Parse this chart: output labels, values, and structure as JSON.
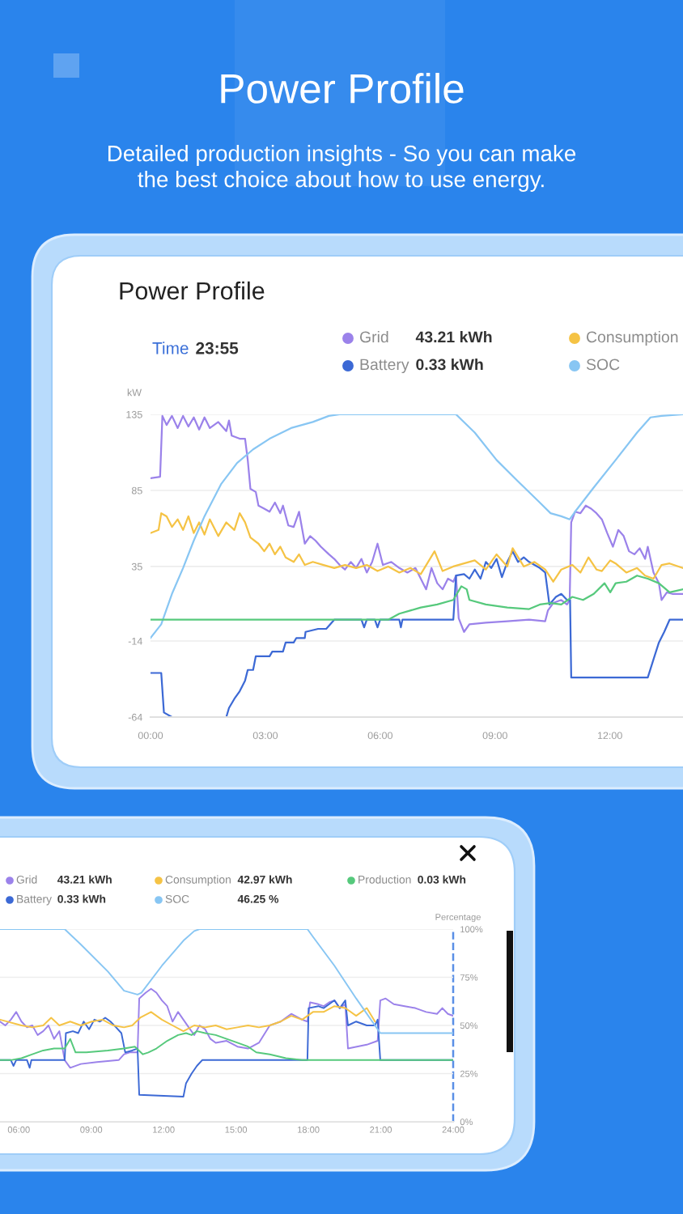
{
  "chart_data": [
    {
      "type": "other",
      "title": "Power Profile",
      "subtitle": "Detailed production insights - So you can make\nthe best choice about how to use energy."
    },
    {
      "type": "line",
      "title": "Power Profile",
      "subtitle": "Time 23:55",
      "ylabel": "kW",
      "xlim": [
        0,
        13.91
      ],
      "xticks": [
        {
          "value": 0,
          "label": "00:00"
        },
        {
          "value": 3,
          "label": "03:00"
        },
        {
          "value": 6,
          "label": "06:00"
        },
        {
          "value": 9,
          "label": "09:00"
        },
        {
          "value": 12,
          "label": "12:00"
        }
      ],
      "ylim": [
        -64,
        135
      ],
      "yticks": [
        135,
        85,
        35,
        -14,
        -64
      ],
      "grid": "y",
      "legend": "top",
      "line_style": "solid",
      "annotations": [
        "43.21 kWh",
        "0.33 kWh"
      ],
      "series": [
        {
          "name": "Grid",
          "color": "#9b82ea",
          "x": [
            0,
            0.25,
            0.31,
            0.42,
            0.56,
            0.71,
            0.85,
            0.99,
            1.13,
            1.27,
            1.41,
            1.55,
            1.77,
            1.98,
            2.05,
            2.12,
            2.33,
            2.47,
            2.54,
            2.61,
            2.75,
            2.82,
            2.97,
            3.11,
            3.25,
            3.39,
            3.46,
            3.6,
            3.74,
            3.88,
            4.03,
            4.17,
            4.31,
            4.45,
            4.66,
            4.8,
            4.94,
            5.08,
            5.23,
            5.37,
            5.51,
            5.65,
            5.79,
            5.93,
            6.07,
            6.29,
            6.5,
            6.71,
            6.92,
            7.06,
            7.2,
            7.34,
            7.49,
            7.63,
            7.77,
            7.91,
            7.98,
            8.05,
            8.19,
            8.33,
            8.76,
            9.32,
            9.89,
            10.31,
            10.38,
            10.52,
            10.73,
            10.88,
            10.95,
            10.99,
            11.09,
            11.23,
            11.37,
            11.51,
            11.65,
            11.79,
            11.93,
            12.08,
            12.22,
            12.36,
            12.5,
            12.64,
            12.78,
            12.92,
            12.99,
            13.14,
            13.28,
            13.35,
            13.49,
            13.63,
            13.91
          ],
          "values": [
            93,
            94,
            134,
            128,
            134,
            126,
            134,
            127,
            133,
            125,
            133,
            126,
            130,
            124,
            131,
            121,
            119,
            119,
            105,
            86,
            84,
            75,
            73,
            71,
            77,
            70,
            75,
            62,
            61,
            71,
            50,
            55,
            52,
            48,
            43,
            40,
            36,
            33,
            38,
            34,
            40,
            31,
            38,
            50,
            36,
            38,
            34,
            31,
            34,
            27,
            20,
            34,
            24,
            20,
            27,
            25,
            29,
            1,
            -8,
            -3,
            -2,
            -1,
            0,
            -1,
            6,
            11,
            13,
            10,
            13,
            64,
            71,
            70,
            75,
            73,
            70,
            66,
            57,
            48,
            59,
            55,
            45,
            43,
            47,
            40,
            48,
            31,
            24,
            13,
            18,
            17,
            17
          ]
        },
        {
          "name": "Battery",
          "color": "#3c69d5",
          "x": [
            0,
            0.28,
            0.35,
            0.56,
            1.98,
            2.05,
            2.19,
            2.33,
            2.47,
            2.54,
            2.68,
            2.75,
            3.11,
            3.18,
            3.46,
            3.53,
            3.74,
            3.81,
            4.03,
            4.05,
            4.38,
            4.59,
            4.66,
            4.8,
            5.51,
            5.58,
            5.65,
            5.86,
            5.93,
            6.0,
            6.5,
            6.54,
            6.58,
            7.91,
            7.98,
            8.19,
            8.33,
            8.47,
            8.62,
            8.76,
            8.9,
            9.04,
            9.18,
            9.32,
            9.46,
            9.6,
            9.75,
            9.89,
            10.03,
            10.17,
            10.31,
            10.42,
            10.59,
            10.73,
            10.88,
            10.96,
            10.99,
            12.99,
            13.14,
            13.28,
            13.42,
            13.56,
            13.91
          ],
          "values": [
            -35,
            -35,
            -61,
            -64,
            -64,
            -58,
            -52,
            -47,
            -40,
            -33,
            -33,
            -24,
            -24,
            -21,
            -21,
            -15,
            -15,
            -12,
            -12,
            -8,
            -6,
            -6,
            -4,
            0,
            0,
            -5,
            0,
            0,
            -5,
            0,
            0,
            -5,
            0,
            0,
            29,
            30,
            27,
            33,
            27,
            38,
            34,
            40,
            28,
            38,
            45,
            38,
            41,
            38,
            36,
            34,
            31,
            10,
            15,
            17,
            13,
            13,
            -38,
            -38,
            -26,
            -15,
            -8,
            0,
            0
          ]
        },
        {
          "name": "Consumption",
          "color": "#f5c345",
          "x": [
            0,
            0.21,
            0.28,
            0.42,
            0.56,
            0.71,
            0.85,
            0.99,
            1.13,
            1.27,
            1.41,
            1.55,
            1.77,
            1.98,
            2.19,
            2.33,
            2.47,
            2.61,
            2.82,
            2.97,
            3.11,
            3.25,
            3.39,
            3.53,
            3.74,
            3.88,
            4.03,
            4.24,
            4.52,
            4.8,
            5.08,
            5.37,
            5.65,
            5.93,
            6.21,
            6.5,
            6.79,
            7.06,
            7.42,
            7.63,
            7.91,
            8.47,
            8.76,
            9.04,
            9.32,
            9.46,
            9.75,
            10.03,
            10.31,
            10.52,
            10.73,
            11.02,
            11.23,
            11.44,
            11.65,
            11.79,
            12.01,
            12.15,
            12.43,
            12.71,
            12.92,
            13.14,
            13.35,
            13.56,
            13.91
          ],
          "values": [
            57,
            59,
            70,
            68,
            61,
            66,
            59,
            68,
            57,
            64,
            56,
            66,
            55,
            64,
            59,
            70,
            64,
            54,
            50,
            45,
            50,
            43,
            48,
            41,
            38,
            43,
            36,
            38,
            36,
            34,
            36,
            34,
            36,
            32,
            35,
            31,
            34,
            30,
            45,
            32,
            35,
            39,
            33,
            43,
            35,
            47,
            35,
            38,
            33,
            25,
            33,
            36,
            31,
            41,
            33,
            32,
            39,
            37,
            31,
            34,
            29,
            27,
            36,
            37,
            34
          ]
        },
        {
          "name": "SOC",
          "color": "#88c6f3",
          "x": [
            0,
            0.28,
            0.56,
            0.85,
            1.13,
            1.41,
            1.84,
            2.26,
            2.68,
            3.11,
            3.67,
            4.24,
            4.66,
            4.94,
            7.98,
            8.47,
            9.04,
            9.6,
            10.17,
            10.45,
            10.73,
            10.95,
            11.09,
            11.58,
            12.15,
            12.71,
            13.06,
            13.35,
            13.91
          ],
          "values": [
            -12,
            -3,
            17,
            34,
            52,
            68,
            89,
            103,
            112,
            119,
            126,
            130,
            134,
            135,
            135,
            123,
            105,
            91,
            77,
            70,
            68,
            66,
            71,
            87,
            105,
            123,
            133,
            134,
            135
          ]
        },
        {
          "color": "#56c97c",
          "x": [
            0,
            6.21,
            6.5,
            7.06,
            7.49,
            7.91,
            8.12,
            8.26,
            8.33,
            8.76,
            9.32,
            9.89,
            10.17,
            10.45,
            10.73,
            11.02,
            11.3,
            11.58,
            11.86,
            12.01,
            12.15,
            12.43,
            12.71,
            12.99,
            13.28,
            13.56,
            13.91
          ],
          "values": [
            0,
            0,
            4,
            8,
            10,
            13,
            22,
            20,
            13,
            10,
            8,
            7,
            10,
            11,
            10,
            15,
            13,
            17,
            24,
            18,
            24,
            25,
            29,
            27,
            24,
            18,
            20
          ]
        }
      ]
    },
    {
      "type": "line",
      "y2label": "Percentage",
      "xlim": [
        5.22,
        24
      ],
      "xticks": [
        {
          "value": 6,
          "label": "06:00"
        },
        {
          "value": 9,
          "label": "09:00"
        },
        {
          "value": 12,
          "label": "12:00"
        },
        {
          "value": 15,
          "label": "15:00"
        },
        {
          "value": 18,
          "label": "18:00"
        },
        {
          "value": 21,
          "label": "21:00"
        },
        {
          "value": 24,
          "label": "24:00"
        }
      ],
      "y2lim": [
        0,
        100
      ],
      "y2ticks": [
        {
          "value": 0,
          "label": "0%"
        },
        {
          "value": 25,
          "label": "25%"
        },
        {
          "value": 50,
          "label": "50%"
        },
        {
          "value": 75,
          "label": "75%"
        },
        {
          "value": 100,
          "label": "100%"
        }
      ],
      "grid": "y",
      "legend": "top",
      "line_style": "solid",
      "ref_lines": [
        {
          "axis": "x",
          "value": 24,
          "line_style": "dashed",
          "color": "#5a8fe6"
        }
      ],
      "annotations": [
        "43.21 kWh",
        "0.33 kWh",
        "42.97 kWh",
        "46.25 %",
        "0.03 kWh"
      ],
      "series": [
        {
          "name": "Grid",
          "color": "#9b82ea",
          "axis": "y2",
          "x": [
            5.22,
            5.44,
            5.67,
            5.89,
            6.11,
            6.34,
            6.56,
            6.78,
            7.01,
            7.23,
            7.46,
            7.68,
            7.9,
            8.13,
            8.57,
            9.24,
            10.14,
            10.36,
            10.59,
            10.92,
            10.99,
            11.26,
            11.48,
            11.7,
            11.93,
            12.15,
            12.37,
            12.6,
            12.82,
            13.04,
            13.27,
            13.49,
            13.72,
            13.94,
            14.16,
            14.61,
            15.06,
            15.5,
            15.95,
            16.4,
            16.85,
            17.29,
            17.74,
            17.96,
            18.07,
            18.41,
            18.63,
            18.86,
            19.08,
            19.3,
            19.53,
            19.64,
            20.42,
            20.87,
            20.98,
            21.2,
            21.54,
            21.99,
            22.43,
            22.88,
            23.33,
            23.55,
            23.78,
            24.0
          ],
          "values": [
            52,
            50,
            53,
            57,
            52,
            49,
            50,
            45,
            47,
            50,
            43,
            47,
            32,
            28,
            30,
            31,
            32,
            35,
            36,
            36,
            64,
            67,
            69,
            67,
            63,
            60,
            52,
            57,
            53,
            49,
            45,
            50,
            48,
            43,
            41,
            42,
            39,
            38,
            41,
            50,
            52,
            56,
            53,
            52,
            62,
            61,
            60,
            62,
            63,
            59,
            61,
            38,
            40,
            42,
            63,
            64,
            61,
            60,
            59,
            57,
            56,
            59,
            56,
            55
          ]
        },
        {
          "name": "Battery",
          "color": "#3c69d5",
          "axis": "y2",
          "x": [
            5.22,
            5.67,
            5.78,
            5.89,
            6.34,
            6.45,
            6.52,
            7.9,
            7.95,
            8.24,
            8.46,
            8.69,
            8.91,
            9.13,
            9.36,
            9.58,
            9.8,
            10.03,
            10.25,
            10.41,
            10.7,
            10.92,
            10.99,
            12.82,
            12.93,
            13.16,
            13.38,
            13.6,
            17.96,
            18.01,
            18.41,
            18.63,
            18.86,
            19.08,
            19.3,
            19.53,
            19.64,
            19.98,
            20.42,
            20.76,
            20.87,
            20.98,
            24.0
          ],
          "values": [
            32,
            32,
            29,
            32,
            32,
            28,
            32,
            32,
            46,
            47,
            46,
            52,
            48,
            53,
            52,
            54,
            52,
            49,
            46,
            36,
            37,
            38,
            14,
            13,
            20,
            25,
            29,
            32,
            32,
            59,
            60,
            59,
            61,
            63,
            59,
            63,
            50,
            52,
            50,
            50,
            53,
            32,
            32
          ]
        },
        {
          "name": "Consumption",
          "color": "#f5c345",
          "axis": "y2",
          "x": [
            5.22,
            6.11,
            6.56,
            7.01,
            7.34,
            7.68,
            8.13,
            8.57,
            9.02,
            9.47,
            9.91,
            10.36,
            10.7,
            11.03,
            11.48,
            11.93,
            12.37,
            12.82,
            13.27,
            13.72,
            14.16,
            14.61,
            15.06,
            15.5,
            15.95,
            16.4,
            16.85,
            17.29,
            17.74,
            18.19,
            18.63,
            19.08,
            19.53,
            19.98,
            20.42,
            20.76
          ],
          "values": [
            53,
            50,
            49,
            50,
            54,
            50,
            52,
            50,
            52,
            53,
            50,
            49,
            50,
            54,
            57,
            53,
            50,
            47,
            50,
            49,
            50,
            48,
            49,
            50,
            49,
            50,
            52,
            55,
            53,
            57,
            57,
            60,
            59,
            55,
            59,
            52
          ]
        },
        {
          "name": "SOC",
          "color": "#88c6f3",
          "axis": "y2",
          "x": [
            5.22,
            7.9,
            8.57,
            9.69,
            10.36,
            10.92,
            11.08,
            11.93,
            12.82,
            13.27,
            13.49,
            17.96,
            18.19,
            19.08,
            19.98,
            20.87,
            20.98,
            24.0
          ],
          "values": [
            100,
            100,
            92,
            78,
            68,
            66,
            67,
            81,
            94,
            99,
            100,
            100,
            96,
            81,
            64,
            48,
            46,
            46
          ]
        },
        {
          "name": "Production",
          "color": "#56c97c",
          "axis": "y2",
          "x": [
            5.22,
            5.67,
            6.11,
            6.56,
            7.01,
            7.46,
            7.9,
            8.13,
            8.35,
            8.8,
            9.69,
            10.36,
            10.81,
            11.14,
            11.37,
            11.7,
            12.15,
            12.6,
            12.93,
            13.16,
            13.38,
            13.72,
            14.16,
            14.61,
            15.06,
            15.5,
            15.84,
            16.4,
            17.07,
            17.74,
            24.0
          ],
          "values": [
            32,
            32,
            33,
            35,
            37,
            38,
            38,
            43,
            36,
            36,
            37,
            38,
            39,
            35,
            36,
            38,
            42,
            45,
            46,
            45,
            47,
            46,
            45,
            43,
            41,
            39,
            36,
            35,
            33,
            32,
            32
          ]
        }
      ]
    }
  ]
}
